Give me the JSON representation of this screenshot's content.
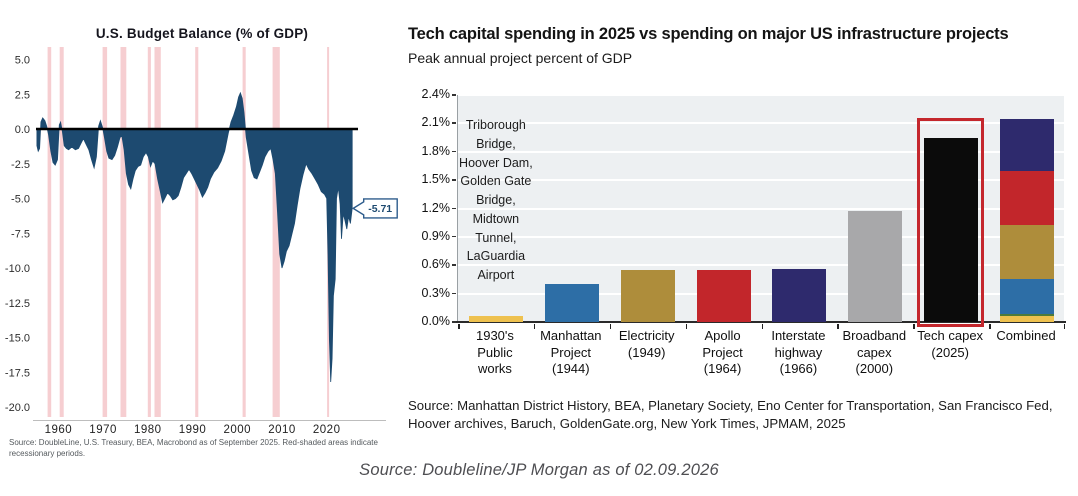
{
  "footer": {
    "source": "Source: Doubleline/JP Morgan as of 02.09.2026"
  },
  "chart_data": [
    {
      "type": "area",
      "title": "U.S. Budget Balance (% of GDP)",
      "source": "Source: DoubleLine, U.S. Treasury, BEA, Macrobond as of September 2025. Red-shaded areas indicate recessionary periods.",
      "latest_value_label": "-5.71",
      "xlim": [
        1955,
        2027
      ],
      "ylim": [
        -20.5,
        5.5
      ],
      "x_ticks": [
        1960,
        1970,
        1980,
        1990,
        2000,
        2010,
        2020
      ],
      "y_ticks": [
        5.0,
        2.5,
        0.0,
        -2.5,
        -5.0,
        -7.5,
        -10.0,
        -12.5,
        -15.0,
        -17.5,
        -20.0
      ],
      "recession_bands": [
        [
          1957.6,
          1958.4
        ],
        [
          1960.3,
          1961.2
        ],
        [
          1969.9,
          1970.9
        ],
        [
          1973.9,
          1975.2
        ],
        [
          1980.0,
          1980.7
        ],
        [
          1981.5,
          1982.9
        ],
        [
          1990.6,
          1991.3
        ],
        [
          2001.2,
          2001.9
        ],
        [
          2007.9,
          2009.5
        ],
        [
          2020.1,
          2020.5
        ]
      ],
      "colors": {
        "area": "#1d4a70",
        "recession": "#f6ced1",
        "zero_line": "#000000",
        "callout_border": "#2d5c8c",
        "callout_text": "#1d4a70"
      },
      "series": [
        {
          "name": "U.S. budget balance (% of GDP)",
          "points": [
            [
              1955.2,
              -1.2
            ],
            [
              1955.5,
              -1.6
            ],
            [
              1955.8,
              -1.4
            ],
            [
              1956.1,
              0.5
            ],
            [
              1956.5,
              0.8
            ],
            [
              1957.0,
              0.6
            ],
            [
              1957.4,
              0.2
            ],
            [
              1957.8,
              -0.4
            ],
            [
              1958.3,
              -1.6
            ],
            [
              1958.8,
              -2.4
            ],
            [
              1959.3,
              -2.6
            ],
            [
              1959.8,
              -2.2
            ],
            [
              1960.2,
              0.3
            ],
            [
              1960.5,
              0.5
            ],
            [
              1960.9,
              -0.2
            ],
            [
              1961.3,
              -1.2
            ],
            [
              1961.8,
              -1.4
            ],
            [
              1962.3,
              -1.5
            ],
            [
              1963.0,
              -1.3
            ],
            [
              1963.8,
              -1.5
            ],
            [
              1964.5,
              -1.4
            ],
            [
              1965.1,
              -1.0
            ],
            [
              1965.6,
              -0.7
            ],
            [
              1966.2,
              -1.1
            ],
            [
              1966.8,
              -1.5
            ],
            [
              1967.4,
              -2.2
            ],
            [
              1968.0,
              -2.8
            ],
            [
              1968.5,
              -2.0
            ],
            [
              1969.0,
              0.2
            ],
            [
              1969.4,
              0.6
            ],
            [
              1969.9,
              0.1
            ],
            [
              1970.3,
              -0.6
            ],
            [
              1970.8,
              -1.6
            ],
            [
              1971.3,
              -2.1
            ],
            [
              1972.0,
              -2.2
            ],
            [
              1972.6,
              -1.9
            ],
            [
              1973.2,
              -1.3
            ],
            [
              1973.8,
              -0.6
            ],
            [
              1974.2,
              -0.5
            ],
            [
              1974.7,
              -1.5
            ],
            [
              1975.2,
              -3.2
            ],
            [
              1975.7,
              -4.0
            ],
            [
              1976.2,
              -4.3
            ],
            [
              1976.7,
              -3.6
            ],
            [
              1977.2,
              -3.0
            ],
            [
              1977.8,
              -2.7
            ],
            [
              1978.4,
              -2.6
            ],
            [
              1979.0,
              -2.0
            ],
            [
              1979.6,
              -1.7
            ],
            [
              1980.1,
              -2.0
            ],
            [
              1980.6,
              -2.7
            ],
            [
              1981.1,
              -2.3
            ],
            [
              1981.6,
              -2.5
            ],
            [
              1982.2,
              -3.6
            ],
            [
              1982.8,
              -4.5
            ],
            [
              1983.3,
              -5.3
            ],
            [
              1983.8,
              -5.0
            ],
            [
              1984.4,
              -4.6
            ],
            [
              1985.0,
              -4.8
            ],
            [
              1985.6,
              -5.1
            ],
            [
              1986.2,
              -5.0
            ],
            [
              1986.8,
              -4.8
            ],
            [
              1987.4,
              -4.2
            ],
            [
              1988.0,
              -3.5
            ],
            [
              1988.6,
              -3.2
            ],
            [
              1989.2,
              -2.9
            ],
            [
              1989.8,
              -3.2
            ],
            [
              1990.4,
              -3.6
            ],
            [
              1991.0,
              -4.0
            ],
            [
              1991.6,
              -4.4
            ],
            [
              1992.2,
              -4.9
            ],
            [
              1992.8,
              -4.6
            ],
            [
              1993.4,
              -4.2
            ],
            [
              1994.0,
              -3.6
            ],
            [
              1994.8,
              -3.1
            ],
            [
              1995.6,
              -2.8
            ],
            [
              1996.4,
              -2.3
            ],
            [
              1997.2,
              -1.6
            ],
            [
              1998.0,
              -0.3
            ],
            [
              1998.6,
              0.5
            ],
            [
              1999.2,
              1.0
            ],
            [
              1999.8,
              1.6
            ],
            [
              2000.3,
              2.3
            ],
            [
              2000.7,
              2.6
            ],
            [
              2001.1,
              2.2
            ],
            [
              2001.5,
              1.2
            ],
            [
              2002.0,
              -0.6
            ],
            [
              2002.6,
              -1.8
            ],
            [
              2003.2,
              -3.0
            ],
            [
              2003.8,
              -3.5
            ],
            [
              2004.4,
              -3.6
            ],
            [
              2005.0,
              -3.1
            ],
            [
              2005.6,
              -2.6
            ],
            [
              2006.2,
              -2.0
            ],
            [
              2006.9,
              -1.6
            ],
            [
              2007.5,
              -1.4
            ],
            [
              2008.0,
              -2.2
            ],
            [
              2008.5,
              -3.2
            ],
            [
              2009.0,
              -6.0
            ],
            [
              2009.5,
              -9.0
            ],
            [
              2010.0,
              -10.0
            ],
            [
              2010.5,
              -9.5
            ],
            [
              2011.0,
              -8.8
            ],
            [
              2011.6,
              -8.4
            ],
            [
              2012.2,
              -7.6
            ],
            [
              2012.8,
              -6.8
            ],
            [
              2013.4,
              -5.5
            ],
            [
              2014.0,
              -4.3
            ],
            [
              2014.7,
              -3.3
            ],
            [
              2015.4,
              -2.5
            ],
            [
              2016.0,
              -2.9
            ],
            [
              2016.7,
              -3.2
            ],
            [
              2017.4,
              -3.6
            ],
            [
              2018.1,
              -4.0
            ],
            [
              2018.8,
              -4.5
            ],
            [
              2019.5,
              -4.7
            ],
            [
              2020.0,
              -5.0
            ],
            [
              2020.3,
              -9.0
            ],
            [
              2020.6,
              -15.2
            ],
            [
              2020.9,
              -18.2
            ],
            [
              2021.2,
              -16.5
            ],
            [
              2021.5,
              -12.0
            ],
            [
              2021.9,
              -10.8
            ],
            [
              2022.2,
              -5.0
            ],
            [
              2022.6,
              -4.2
            ],
            [
              2023.0,
              -5.4
            ],
            [
              2023.3,
              -7.9
            ],
            [
              2023.7,
              -6.1
            ],
            [
              2024.1,
              -6.6
            ],
            [
              2024.5,
              -7.2
            ],
            [
              2024.9,
              -6.3
            ],
            [
              2025.3,
              -6.8
            ],
            [
              2025.7,
              -5.71
            ]
          ]
        }
      ]
    },
    {
      "type": "bar",
      "title": "Tech capital spending in 2025 vs spending on major US infrastructure projects",
      "subtitle": "Peak annual project percent of GDP",
      "annotation": "Triborough Bridge, Hoover Dam, Golden Gate Bridge, Midtown Tunnel, LaGuardia Airport",
      "source": "Source: Manhattan District History, BEA, Planetary Society, Eno Center for Transportation, San Francisco Fed, Hoover archives, Baruch, GoldenGate.org, New York Times, JPMAM, 2025",
      "categories": [
        "1930's Public works",
        "Manhattan Project (1944)",
        "Electricity (1949)",
        "Apollo Project (1964)",
        "Interstate highway (1966)",
        "Broadband capex (2000)",
        "Tech capex (2025)",
        "Combined"
      ],
      "category_lines": [
        [
          "1930's",
          "Public",
          "works"
        ],
        [
          "Manhattan",
          "Project",
          "(1944)"
        ],
        [
          "Electricity",
          "(1949)"
        ],
        [
          "Apollo",
          "Project",
          "(1964)"
        ],
        [
          "Interstate",
          "highway",
          "(1966)"
        ],
        [
          "Broadband",
          "capex",
          "(2000)"
        ],
        [
          "Tech capex",
          "(2025)"
        ],
        [
          "Combined"
        ]
      ],
      "values": [
        0.06,
        0.4,
        0.55,
        0.55,
        0.56,
        1.17,
        1.95,
        2.15
      ],
      "bar_colors": [
        "#eec14f",
        "#2d6ea6",
        "#ae8d3b",
        "#c2262b",
        "#2e2a6d",
        "#a8a8aa",
        "#0b0b0b",
        null
      ],
      "combined_stack": [
        {
          "value": 0.06,
          "color": "#eec14f"
        },
        {
          "value": 0.02,
          "color": "#4e7b3a"
        },
        {
          "value": 0.38,
          "color": "#2d6ea6"
        },
        {
          "value": 0.57,
          "color": "#ae8d3b"
        },
        {
          "value": 0.57,
          "color": "#c2262b"
        },
        {
          "value": 0.55,
          "color": "#2e2a6d"
        }
      ],
      "highlight": {
        "category_index": 6,
        "box_color": "#c4272d",
        "box_top_pct": 2.16
      },
      "ylim": [
        0,
        2.4
      ],
      "y_tick_values": [
        2.4,
        2.1,
        1.8,
        1.5,
        1.2,
        0.9,
        0.6,
        0.3,
        0.0
      ],
      "y_tick_suffix": "%",
      "plot_bg": "#edf0f2",
      "grid_color": "#ffffff"
    }
  ]
}
